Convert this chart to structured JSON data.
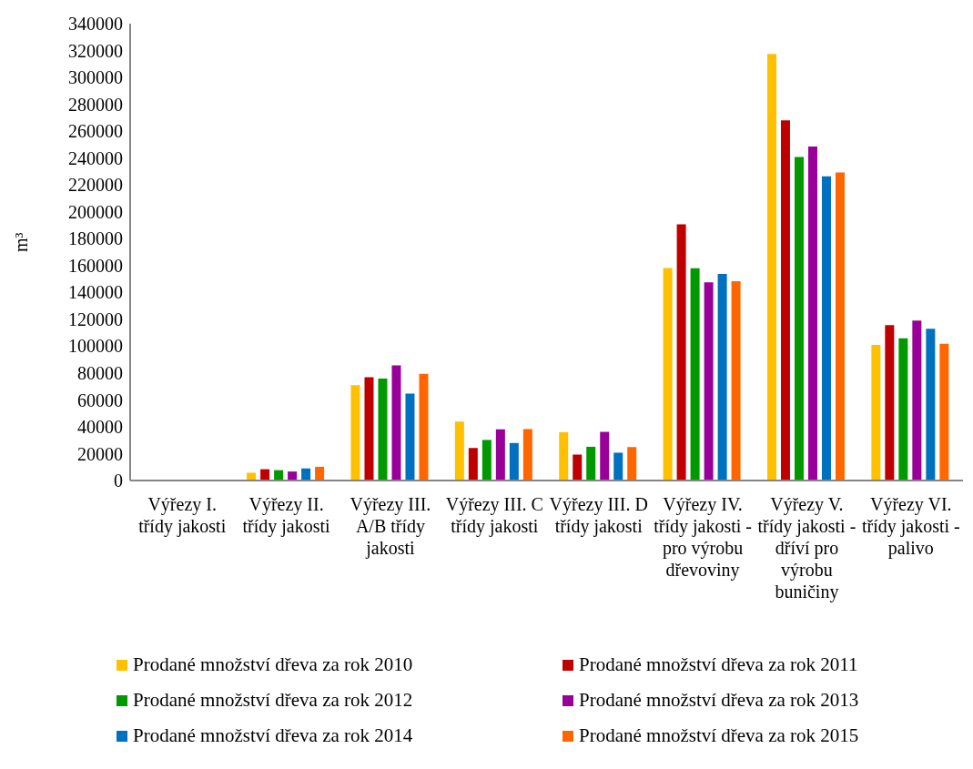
{
  "chart_data": {
    "type": "bar",
    "ylabel": "m³",
    "categories": [
      "Výřezy I. třídy jakosti",
      "Výřezy II. třídy jakosti",
      "Výřezy III. A/B třídy jakosti",
      "Výřezy III. C třídy jakosti",
      "Výřezy III. D třídy jakosti",
      "Výřezy IV. třídy jakosti - pro výrobu dřevoviny",
      "Výřezy V. třídy jakosti - dříví pro výrobu buničiny",
      "Výřezy VI. třídy jakosti - palivo"
    ],
    "series": [
      {
        "name": "Prodané množství dřeva za rok 2010",
        "color": "#ffc000",
        "values": [
          0,
          5800,
          70900,
          43900,
          36000,
          158200,
          317500,
          101000
        ]
      },
      {
        "name": "Prodané množství dřeva za rok 2011",
        "color": "#c00000",
        "values": [
          0,
          8400,
          76800,
          24200,
          19300,
          190700,
          268000,
          115700
        ]
      },
      {
        "name": "Prodané množství dřeva za rok 2012",
        "color": "#009900",
        "values": [
          0,
          7700,
          75900,
          30200,
          25100,
          157900,
          240800,
          105900
        ]
      },
      {
        "name": "Prodané množství dřeva za rok 2013",
        "color": "#990099",
        "values": [
          0,
          6700,
          85700,
          38100,
          36200,
          147500,
          248500,
          119100
        ]
      },
      {
        "name": "Prodané množství dřeva za rok 2014",
        "color": "#0070c0",
        "values": [
          0,
          9000,
          64600,
          27900,
          20700,
          153800,
          226400,
          112900
        ]
      },
      {
        "name": "Prodané množství dřeva za rok 2015",
        "color": "#ff6600",
        "values": [
          0,
          10200,
          79400,
          38300,
          24900,
          148400,
          229200,
          101700
        ]
      }
    ],
    "ylim": [
      0,
      340000
    ],
    "yticks": [
      0,
      20000,
      40000,
      60000,
      80000,
      100000,
      120000,
      140000,
      160000,
      180000,
      200000,
      220000,
      240000,
      260000,
      280000,
      300000,
      320000,
      340000
    ],
    "grid": false,
    "legend": "bottom"
  }
}
